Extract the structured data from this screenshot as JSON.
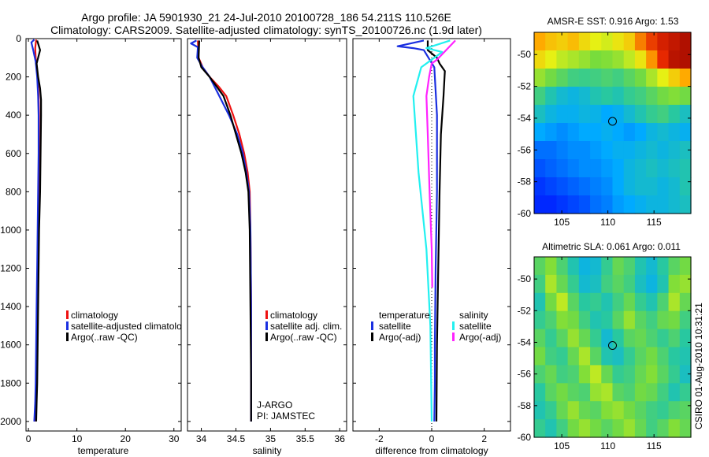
{
  "figure": {
    "title_line1": "Argo profile: JA 5901930_21 24-Jul-2010 20100728_186 54.211S 110.526E",
    "title_line2": "Climatology: CARS2009. Satellite-adjusted climatology: synTS_20100726.nc (1.9d later)",
    "side_stamp": "CSIRO 01-Aug-2010 10:31:21"
  },
  "colors": {
    "red": "#ee1111",
    "blue": "#1a2fe0",
    "black": "#000000",
    "cyan": "#22f0f0",
    "magenta": "#ff22ff"
  },
  "chart_data": [
    {
      "id": "temperature",
      "type": "line",
      "xlabel": "temperature",
      "ylabel": "",
      "xlim": [
        -0.5,
        31.5
      ],
      "ylim": [
        2050,
        0
      ],
      "xticks": [
        0,
        10,
        20,
        30
      ],
      "xtick_labels": [
        "0",
        "10",
        "20",
        "30"
      ],
      "yticks": [
        0,
        200,
        400,
        600,
        800,
        1000,
        1200,
        1400,
        1600,
        1800,
        2000
      ],
      "ytick_labels": [
        "0",
        "200",
        "400",
        "600",
        "800",
        "1000",
        "1200",
        "1400",
        "1600",
        "1800",
        "2000"
      ],
      "legend_loc": "lower-center",
      "legend": [
        "climatology",
        "satellite-adjusted climatolo",
        "Argo(..raw -QC)"
      ],
      "series": [
        {
          "name": "climatology",
          "color": "red",
          "x": [
            1.6,
            1.4,
            1.5,
            1.7,
            1.9,
            2.1,
            2.2,
            2.2,
            2.1,
            2.0,
            1.9,
            1.8,
            1.7,
            1.6,
            1.5,
            1.3
          ],
          "y": [
            5,
            50,
            100,
            150,
            200,
            300,
            400,
            600,
            800,
            1000,
            1200,
            1400,
            1600,
            1800,
            1900,
            2000
          ]
        },
        {
          "name": "satellite-adjusted climatology",
          "color": "blue",
          "x": [
            1.2,
            0.6,
            1.0,
            1.5,
            1.8,
            2.0,
            2.1,
            2.1,
            2.0,
            1.9,
            1.8,
            1.7,
            1.6,
            1.5,
            1.4,
            1.2
          ],
          "y": [
            5,
            20,
            60,
            120,
            200,
            300,
            400,
            600,
            800,
            1000,
            1200,
            1400,
            1600,
            1800,
            1900,
            2000
          ]
        },
        {
          "name": "Argo(..raw -QC)",
          "color": "black",
          "x": [
            1.8,
            2.4,
            1.7,
            2.0,
            2.4,
            2.6,
            2.6,
            2.5,
            2.4,
            2.2,
            2.1,
            2.0,
            1.9,
            1.8,
            1.7,
            1.6
          ],
          "y": [
            10,
            60,
            130,
            200,
            260,
            320,
            400,
            600,
            800,
            1000,
            1200,
            1400,
            1600,
            1800,
            1900,
            2000
          ]
        }
      ]
    },
    {
      "id": "salinity",
      "type": "line",
      "xlabel": "salinity",
      "xlim": [
        33.8,
        36.1
      ],
      "ylim": [
        2050,
        0
      ],
      "xticks": [
        34,
        34.5,
        35,
        35.5,
        36
      ],
      "xtick_labels": [
        "34",
        "34.5",
        "35",
        "35.5",
        "36"
      ],
      "yticks": [
        0,
        200,
        400,
        600,
        800,
        1000,
        1200,
        1400,
        1600,
        1800,
        2000
      ],
      "legend_loc": "lower-center",
      "legend": [
        "climatology",
        "satellite adj. clim.",
        "Argo(..raw -QC)"
      ],
      "annotation": [
        "J-ARGO",
        "PI: JAMSTEC"
      ],
      "series": [
        {
          "name": "climatology",
          "color": "red",
          "x": [
            33.95,
            33.96,
            34.02,
            34.12,
            34.25,
            34.36,
            34.46,
            34.55,
            34.62,
            34.67,
            34.7,
            34.71,
            34.72,
            34.72,
            34.72
          ],
          "y": [
            10,
            100,
            150,
            200,
            250,
            300,
            400,
            500,
            600,
            700,
            800,
            1000,
            1400,
            1800,
            2000
          ]
        },
        {
          "name": "satellite adj. clim.",
          "color": "blue",
          "x": [
            33.93,
            33.85,
            33.95,
            33.94,
            34.02,
            34.12,
            34.26,
            34.4,
            34.52,
            34.6,
            34.65,
            34.69,
            34.71,
            34.72,
            34.72
          ],
          "y": [
            10,
            25,
            45,
            100,
            150,
            200,
            300,
            400,
            500,
            600,
            700,
            800,
            1000,
            1400,
            2000
          ]
        },
        {
          "name": "Argo(..raw -QC)",
          "color": "black",
          "x": [
            33.97,
            33.96,
            34.0,
            34.12,
            34.22,
            34.32,
            34.42,
            34.5,
            34.58,
            34.64,
            34.68,
            34.7,
            34.71,
            34.72,
            34.72
          ],
          "y": [
            10,
            100,
            150,
            200,
            250,
            300,
            400,
            500,
            600,
            700,
            800,
            1000,
            1400,
            1800,
            2000
          ]
        }
      ]
    },
    {
      "id": "difference",
      "type": "line",
      "xlabel": "difference from climatology",
      "xlim": [
        -3,
        3
      ],
      "ylim": [
        2050,
        0
      ],
      "xticks": [
        -2,
        0,
        2
      ],
      "xtick_labels": [
        "-2",
        "0",
        "2"
      ],
      "yticks": [
        0,
        200,
        400,
        600,
        800,
        1000,
        1200,
        1400,
        1600,
        1800,
        2000
      ],
      "legend_loc": "lower-center",
      "legend_groups": [
        {
          "title": "temperature",
          "items": [
            "satellite",
            "Argo(-adj)"
          ]
        },
        {
          "title": "salinity",
          "items": [
            "satellite",
            "Argo(-adj)"
          ]
        }
      ],
      "series": [
        {
          "name": "temperature satellite",
          "color": "blue",
          "x": [
            -0.3,
            -1.3,
            -0.7,
            -0.3,
            0.1,
            0.2,
            0.2,
            0.15,
            0.12,
            0.12,
            0.1
          ],
          "y": [
            10,
            40,
            50,
            60,
            150,
            400,
            800,
            1200,
            1600,
            1800,
            2000
          ]
        },
        {
          "name": "temperature Argo(-adj)",
          "color": "black",
          "x": [
            -0.15,
            -0.15,
            0.2,
            0.3,
            0.5,
            0.45,
            0.35,
            0.3,
            0.25,
            0.2,
            0.18
          ],
          "y": [
            10,
            60,
            100,
            130,
            170,
            300,
            500,
            800,
            1200,
            1600,
            2000
          ]
        },
        {
          "name": "salinity satellite",
          "color": "cyan",
          "x": [
            0.7,
            -0.2,
            0.4,
            0.0,
            -0.4,
            -0.7,
            -0.5,
            -0.2,
            -0.05,
            0.0
          ],
          "y": [
            10,
            50,
            70,
            110,
            150,
            300,
            700,
            1100,
            1500,
            2000
          ]
        },
        {
          "name": "salinity Argo(-adj)",
          "color": "magenta",
          "x": [
            0.9,
            0.2,
            0.0,
            -0.1,
            -0.2,
            -0.15,
            -0.08,
            0.0,
            0.02
          ],
          "y": [
            10,
            110,
            130,
            200,
            300,
            500,
            800,
            1100,
            1300
          ]
        }
      ]
    },
    {
      "id": "sst_map",
      "type": "heatmap",
      "title": "AMSR-E SST: 0.916 Argo: 1.53",
      "xlim": [
        102,
        119
      ],
      "ylim": [
        -60,
        -48.6
      ],
      "xticks": [
        105,
        110,
        115
      ],
      "xtick_labels": [
        "105",
        "110",
        "115"
      ],
      "yticks": [
        -60,
        -58,
        -56,
        -54,
        -52,
        -50
      ],
      "ytick_labels": [
        "-60",
        "-58",
        "-56",
        "-54",
        "-52",
        "-50"
      ],
      "marker": {
        "lon": 110.5,
        "lat": -54.2
      },
      "values": [
        [
          0.78,
          0.74,
          0.72,
          0.75,
          0.7,
          0.66,
          0.64,
          0.68,
          0.72,
          0.82,
          0.88,
          0.92,
          0.94,
          0.96
        ],
        [
          0.7,
          0.66,
          0.62,
          0.6,
          0.58,
          0.55,
          0.56,
          0.58,
          0.62,
          0.68,
          0.8,
          0.9,
          0.95,
          0.96
        ],
        [
          0.58,
          0.54,
          0.5,
          0.46,
          0.45,
          0.46,
          0.48,
          0.46,
          0.5,
          0.54,
          0.6,
          0.66,
          0.72,
          0.78
        ],
        [
          0.46,
          0.4,
          0.36,
          0.34,
          0.36,
          0.4,
          0.42,
          0.4,
          0.44,
          0.46,
          0.5,
          0.54,
          0.56,
          0.54
        ],
        [
          0.38,
          0.34,
          0.32,
          0.32,
          0.34,
          0.33,
          0.3,
          0.32,
          0.36,
          0.4,
          0.44,
          0.46,
          0.42,
          0.38
        ],
        [
          0.3,
          0.28,
          0.26,
          0.28,
          0.3,
          0.3,
          0.32,
          0.3,
          0.28,
          0.3,
          0.34,
          0.36,
          0.34,
          0.32
        ],
        [
          0.22,
          0.22,
          0.24,
          0.26,
          0.26,
          0.28,
          0.3,
          0.32,
          0.32,
          0.34,
          0.36,
          0.34,
          0.36,
          0.38
        ],
        [
          0.18,
          0.2,
          0.22,
          0.24,
          0.26,
          0.26,
          0.28,
          0.3,
          0.34,
          0.36,
          0.38,
          0.36,
          0.38,
          0.4
        ],
        [
          0.14,
          0.16,
          0.18,
          0.2,
          0.22,
          0.24,
          0.26,
          0.3,
          0.34,
          0.36,
          0.36,
          0.34,
          0.36,
          0.4
        ],
        [
          0.12,
          0.12,
          0.14,
          0.16,
          0.18,
          0.22,
          0.24,
          0.28,
          0.3,
          0.32,
          0.34,
          0.34,
          0.36,
          0.38
        ]
      ]
    },
    {
      "id": "sla_map",
      "type": "heatmap",
      "title": "Altimetric SLA: 0.061 Argo: 0.011",
      "xlim": [
        102,
        119
      ],
      "ylim": [
        -60,
        -48.6
      ],
      "xticks": [
        105,
        110,
        115
      ],
      "xtick_labels": [
        "105",
        "110",
        "115"
      ],
      "yticks": [
        -60,
        -58,
        -56,
        -54,
        -52,
        -50
      ],
      "ytick_labels": [
        "-60",
        "-58",
        "-56",
        "-54",
        "-52",
        "-50"
      ],
      "marker": {
        "lon": 110.5,
        "lat": -54.2
      },
      "values": [
        [
          0.5,
          0.56,
          0.48,
          0.4,
          0.34,
          0.36,
          0.44,
          0.52,
          0.48,
          0.4,
          0.36,
          0.42,
          0.5,
          0.54
        ],
        [
          0.46,
          0.6,
          0.52,
          0.44,
          0.36,
          0.38,
          0.46,
          0.5,
          0.46,
          0.38,
          0.34,
          0.4,
          0.56,
          0.58
        ],
        [
          0.4,
          0.54,
          0.62,
          0.5,
          0.42,
          0.44,
          0.4,
          0.46,
          0.52,
          0.44,
          0.4,
          0.48,
          0.6,
          0.52
        ],
        [
          0.44,
          0.48,
          0.56,
          0.54,
          0.46,
          0.4,
          0.42,
          0.5,
          0.58,
          0.5,
          0.46,
          0.52,
          0.54,
          0.46
        ],
        [
          0.5,
          0.44,
          0.5,
          0.58,
          0.52,
          0.44,
          0.36,
          0.42,
          0.5,
          0.52,
          0.48,
          0.44,
          0.48,
          0.42
        ],
        [
          0.54,
          0.46,
          0.44,
          0.52,
          0.6,
          0.5,
          0.4,
          0.38,
          0.44,
          0.5,
          0.54,
          0.48,
          0.42,
          0.4
        ],
        [
          0.48,
          0.52,
          0.46,
          0.48,
          0.56,
          0.62,
          0.52,
          0.44,
          0.46,
          0.52,
          0.56,
          0.5,
          0.44,
          0.38
        ],
        [
          0.42,
          0.5,
          0.54,
          0.5,
          0.48,
          0.58,
          0.6,
          0.5,
          0.48,
          0.54,
          0.52,
          0.46,
          0.4,
          0.44
        ],
        [
          0.4,
          0.44,
          0.52,
          0.58,
          0.52,
          0.5,
          0.56,
          0.58,
          0.54,
          0.5,
          0.46,
          0.44,
          0.48,
          0.5
        ],
        [
          0.44,
          0.4,
          0.46,
          0.54,
          0.58,
          0.54,
          0.5,
          0.54,
          0.58,
          0.52,
          0.46,
          0.5,
          0.56,
          0.52
        ]
      ]
    }
  ]
}
